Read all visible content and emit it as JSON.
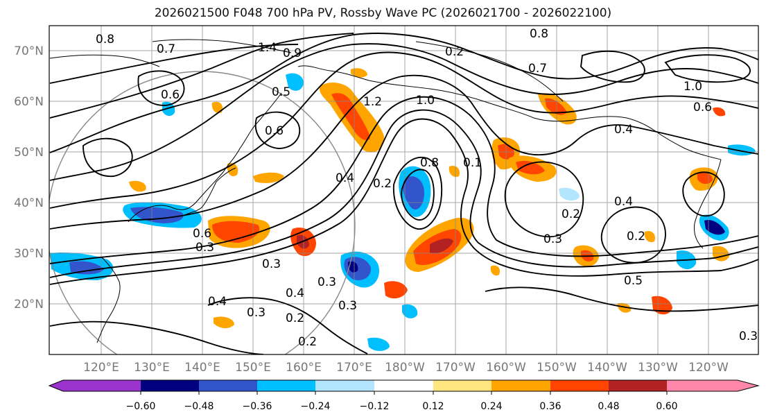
{
  "title": "2026021500 F048 700 hPa PV, Rossby Wave PC (2026021700 - 2026022100)",
  "lat_labels": [
    "70°N",
    "60°N",
    "50°N",
    "40°N",
    "30°N",
    "20°N"
  ],
  "lon_labels": [
    "120°E",
    "130°E",
    "140°E",
    "150°E",
    "160°E",
    "170°E",
    "180°W",
    "170°W",
    "160°W",
    "150°W",
    "140°W",
    "130°W",
    "120°W"
  ],
  "colorbar": {
    "colors": [
      "#9933cc",
      "#000080",
      "#3355cc",
      "#00bfff",
      "#b3e5ff",
      "#ffffff",
      "#ffe680",
      "#ffa500",
      "#ff4500",
      "#b22222",
      "#ff88aa"
    ],
    "tick_labels": [
      "−0.60",
      "−0.48",
      "−0.36",
      "−0.24",
      "−0.12",
      "0.12",
      "0.24",
      "0.36",
      "0.48",
      "0.60"
    ]
  },
  "contour_labels": [
    "0.8",
    "0.7",
    "1.4",
    "0.9",
    "0.2",
    "0.8",
    "0.7",
    "0.6",
    "0.5",
    "1.2",
    "1.0",
    "0.6",
    "0.4",
    "0.2",
    "0.8",
    "0.1",
    "0.4",
    "0.3",
    "0.2",
    "0.6",
    "0.3",
    "0.3",
    "0.4",
    "0.3",
    "0.3",
    "0.2",
    "0.2",
    "0.5",
    "0.2",
    "0.3",
    "1.0",
    "0.6",
    "0.4",
    "0.4",
    "0.3"
  ]
}
